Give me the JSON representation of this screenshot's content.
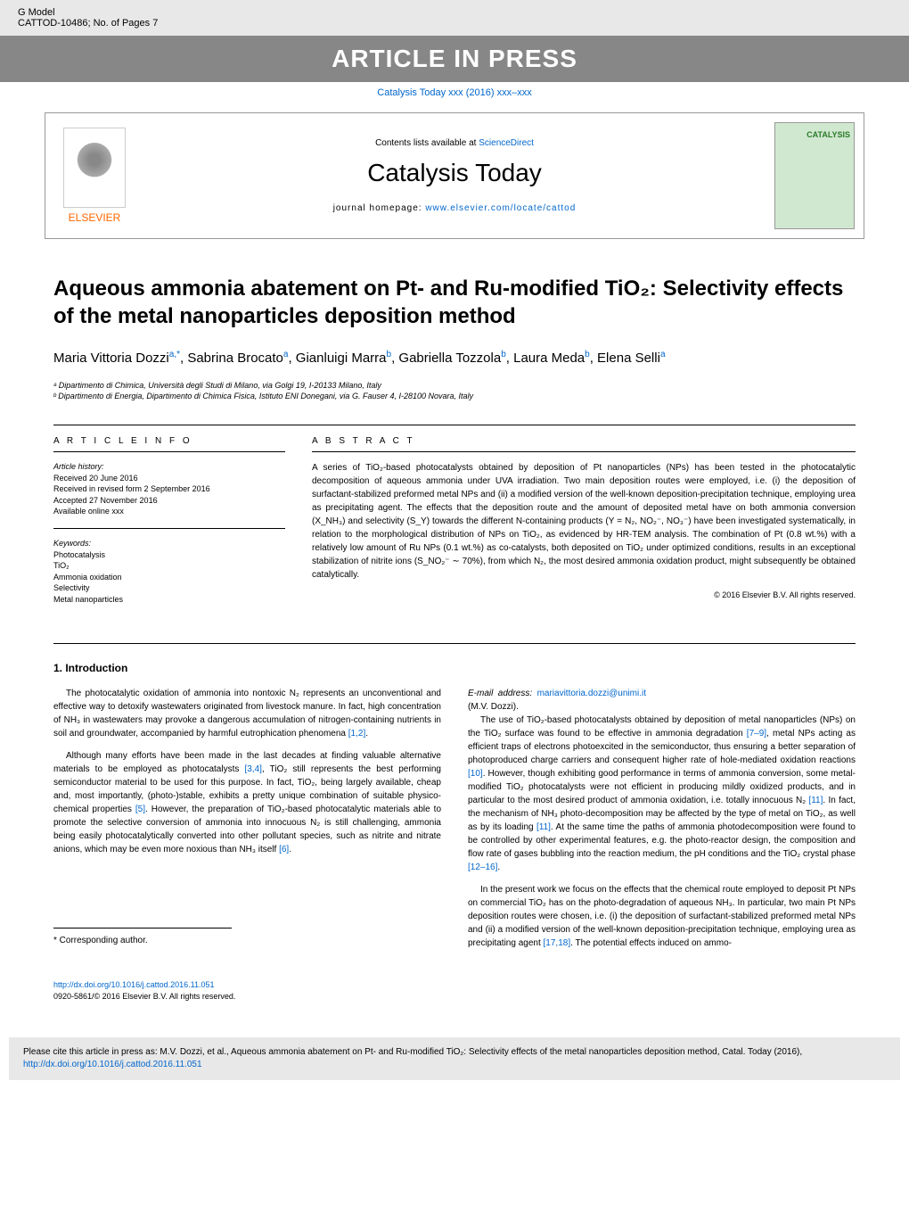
{
  "topbar": {
    "left_line1": "G Model",
    "left_line2": "CATTOD-10486;   No. of Pages 7",
    "press_banner": "ARTICLE IN PRESS"
  },
  "journal_link": "Catalysis Today xxx (2016) xxx–xxx",
  "header": {
    "contents_text": "Contents lists available at ",
    "contents_link": "ScienceDirect",
    "journal_title": "Catalysis Today",
    "homepage_text": "journal homepage: ",
    "homepage_link": "www.elsevier.com/locate/cattod",
    "publisher": "ELSEVIER",
    "cover_label": "CATALYSIS"
  },
  "article": {
    "title": "Aqueous ammonia abatement on Pt- and Ru-modified TiO₂: Selectivity effects of the metal nanoparticles deposition method",
    "authors_html": "Maria Vittoria Dozzi",
    "author_list": [
      {
        "name": "Maria Vittoria Dozzi",
        "sup": "a,*"
      },
      {
        "name": "Sabrina Brocato",
        "sup": "a"
      },
      {
        "name": "Gianluigi Marra",
        "sup": "b"
      },
      {
        "name": "Gabriella Tozzola",
        "sup": "b"
      },
      {
        "name": "Laura Meda",
        "sup": "b"
      },
      {
        "name": "Elena Selli",
        "sup": "a"
      }
    ],
    "affiliations": [
      "ᵃ Dipartimento di Chimica, Università degli Studi di Milano, via Golgi 19, I-20133 Milano, Italy",
      "ᵇ Dipartimento di Energia, Dipartimento di Chimica Fisica, Istituto ENI Donegani, via G. Fauser 4, I-28100 Novara, Italy"
    ]
  },
  "info": {
    "header": "A R T I C L E   I N F O",
    "history_label": "Article history:",
    "received": "Received 20 June 2016",
    "revised": "Received in revised form 2 September 2016",
    "accepted": "Accepted 27 November 2016",
    "online": "Available online xxx",
    "keywords_label": "Keywords:",
    "keywords": [
      "Photocatalysis",
      "TiO₂",
      "Ammonia oxidation",
      "Selectivity",
      "Metal nanoparticles"
    ]
  },
  "abstract": {
    "header": "A B S T R A C T",
    "text": "A series of TiO₂-based photocatalysts obtained by deposition of Pt nanoparticles (NPs) has been tested in the photocatalytic decomposition of aqueous ammonia under UVA irradiation. Two main deposition routes were employed, i.e. (i) the deposition of surfactant-stabilized preformed metal NPs and (ii) a modified version of the well-known deposition-precipitation technique, employing urea as precipitating agent. The effects that the deposition route and the amount of deposited metal have on both ammonia conversion (X_NH₃) and selectivity (S_Y) towards the different N-containing products (Y = N₂, NO₂⁻, NO₃⁻) have been investigated systematically, in relation to the morphological distribution of NPs on TiO₂, as evidenced by HR-TEM analysis. The combination of Pt (0.8 wt.%) with a relatively low amount of Ru NPs (0.1 wt.%) as co-catalysts, both deposited on TiO₂ under optimized conditions, results in an exceptional stabilization of nitrite ions (S_NO₂⁻ ∼ 70%), from which N₂, the most desired ammonia oxidation product, might subsequently be obtained catalytically.",
    "copyright": "© 2016 Elsevier B.V. All rights reserved."
  },
  "intro": {
    "heading": "1. Introduction",
    "p1": "The photocatalytic oxidation of ammonia into nontoxic N₂ represents an unconventional and effective way to detoxify wastewaters originated from livestock manure. In fact, high concentration of NH₃ in wastewaters may provoke a dangerous accumulation of nitrogen-containing nutrients in soil and groundwater, accompanied by harmful eutrophication phenomena ",
    "p1_ref": "[1,2]",
    "p1_end": ".",
    "p2": "Although many efforts have been made in the last decades at finding valuable alternative materials to be employed as photocatalysts ",
    "p2_ref1": "[3,4]",
    "p2_mid": ", TiO₂ still represents the best performing semiconductor material to be used for this purpose. In fact, TiO₂, being largely available, cheap and, most importantly, (photo-)stable, exhibits a pretty unique combination of suitable physico-chemical properties ",
    "p2_ref2": "[5]",
    "p2_mid2": ". However, the preparation of TiO₂-based photocatalytic materials able to promote the selective conversion of ammonia into innocuous N₂ is still challenging, ammonia being easily photocatalytically converted into other pollutant species, such as nitrite and nitrate anions, which may be even more noxious than NH₃ itself ",
    "p2_ref3": "[6]",
    "p2_end": ".",
    "p3": "The use of TiO₂-based photocatalysts obtained by deposition of metal nanoparticles (NPs) on the TiO₂ surface was found to be effective in ammonia degradation ",
    "p3_ref1": "[7–9]",
    "p3_mid": ", metal NPs acting as efficient traps of electrons photoexcited in the semiconductor, thus ensuring a better separation of photoproduced charge carriers and consequent higher rate of hole-mediated oxidation reactions ",
    "p3_ref2": "[10]",
    "p3_mid2": ". However, though exhibiting good performance in terms of ammonia conversion, some metal-modified TiO₂ photocatalysts were not efficient in producing mildly oxidized products, and in particular to the most desired product of ammonia oxidation, i.e. totally innocuous N₂ ",
    "p3_ref3": "[11]",
    "p3_mid3": ". In fact, the mechanism of NH₃ photo-decomposition may be affected by the type of metal on TiO₂, as well as by its loading ",
    "p3_ref4": "[11]",
    "p3_mid4": ". At the same time the paths of ammonia photodecomposition were found to be controlled by other experimental features, e.g. the photo-reactor design, the composition and flow rate of gases bubbling into the reaction medium, the pH conditions and the TiO₂ crystal phase ",
    "p3_ref5": "[12–16]",
    "p3_end": ".",
    "p4": "In the present work we focus on the effects that the chemical route employed to deposit Pt NPs on commercial TiO₂ has on the photo-degradation of aqueous NH₃. In particular, two main Pt NPs deposition routes were chosen, i.e. (i) the deposition of surfactant-stabilized preformed metal NPs and (ii) a modified version of the well-known deposition-precipitation technique, employing urea as precipitating agent ",
    "p4_ref": "[17,18]",
    "p4_end": ". The potential effects induced on ammo-"
  },
  "footer": {
    "corresponding_label": "* Corresponding author.",
    "email_label": "E-mail address: ",
    "email": "mariavittoria.dozzi@unimi.it",
    "email_suffix": " (M.V. Dozzi).",
    "doi": "http://dx.doi.org/10.1016/j.cattod.2016.11.051",
    "issn": "0920-5861/© 2016 Elsevier B.V. All rights reserved."
  },
  "cite_box": {
    "text": "Please cite this article in press as: M.V. Dozzi, et al., Aqueous ammonia abatement on Pt- and Ru-modified TiO₂: Selectivity effects of the metal nanoparticles deposition method, Catal. Today (2016), ",
    "link": "http://dx.doi.org/10.1016/j.cattod.2016.11.051"
  },
  "colors": {
    "link": "#0066cc",
    "banner_bg": "#878787",
    "grey_bg": "#e8e8e8",
    "cover_bg": "#d0e8d0",
    "cover_text": "#2a7a2a",
    "elsevier_orange": "#ff6600"
  }
}
